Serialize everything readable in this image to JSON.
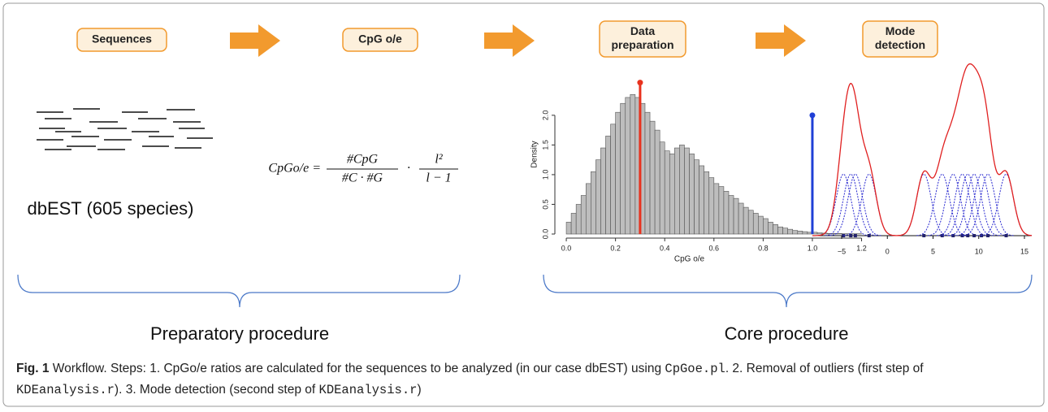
{
  "steps": [
    [
      "Sequences"
    ],
    [
      "CpG o/e"
    ],
    [
      "Data",
      "preparation"
    ],
    [
      "Mode",
      "detection"
    ]
  ],
  "dataset_label": "dbEST (605 species)",
  "formula": {
    "lhs": "CpGo/e =",
    "frac1_num": "#CpG",
    "frac1_den": "#C · #G",
    "dot": "·",
    "frac2_num": "l²",
    "frac2_den": "l − 1"
  },
  "procedures": [
    "Preparatory procedure",
    "Core procedure"
  ],
  "chart_data": [
    {
      "type": "histogram",
      "xlabel": "CpG o/e",
      "ylabel": "Density",
      "color": "#bdbdbd",
      "bins": [
        0,
        0.02,
        0.04,
        0.06,
        0.08,
        0.1,
        0.12,
        0.14,
        0.16,
        0.18,
        0.2,
        0.22,
        0.24,
        0.26,
        0.28,
        0.3,
        0.32,
        0.34,
        0.36,
        0.38,
        0.4,
        0.42,
        0.44,
        0.46,
        0.48,
        0.5,
        0.52,
        0.54,
        0.56,
        0.58,
        0.6,
        0.62,
        0.64,
        0.66,
        0.68,
        0.7,
        0.72,
        0.74,
        0.76,
        0.78,
        0.8,
        0.82,
        0.84,
        0.86,
        0.88,
        0.9,
        0.92,
        0.94,
        0.96,
        0.98,
        1,
        1.02,
        1.04,
        1.06,
        1.08,
        1.1,
        1.12,
        1.14,
        1.16,
        1.18,
        1.2
      ],
      "values": [
        0.2,
        0.35,
        0.5,
        0.65,
        0.85,
        1.05,
        1.25,
        1.45,
        1.65,
        1.85,
        2.05,
        2.2,
        2.3,
        2.35,
        2.3,
        2.2,
        2.05,
        1.9,
        1.75,
        1.55,
        1.4,
        1.35,
        1.45,
        1.5,
        1.45,
        1.35,
        1.25,
        1.15,
        1.05,
        0.95,
        0.85,
        0.8,
        0.72,
        0.65,
        0.6,
        0.52,
        0.45,
        0.4,
        0.35,
        0.3,
        0.26,
        0.2,
        0.16,
        0.12,
        0.1,
        0.08,
        0.06,
        0.05,
        0.04,
        0.03,
        0.03,
        0.02,
        0.015,
        0.01,
        0.01,
        0.01,
        0.005,
        0.005,
        0.005,
        0.005
      ],
      "markers": [
        {
          "x": 0.3,
          "y": 2.55,
          "color": "#e8321e"
        },
        {
          "x": 1.0,
          "y": 2.0,
          "color": "#1f3fd6"
        }
      ],
      "xlim": [
        -0.02,
        1.36
      ],
      "ylim": [
        0,
        2.6
      ],
      "xticks": [
        {
          "value": 0,
          "label": "0.0"
        },
        0.2,
        0.4,
        0.6,
        0.8,
        {
          "value": 1,
          "label": "1.0"
        },
        1.2
      ],
      "yticks": [
        {
          "value": 0,
          "label": "0.0"
        },
        0.5,
        {
          "value": 1,
          "label": "1.0"
        },
        1.5,
        {
          "value": 2,
          "label": "2.0"
        }
      ]
    },
    {
      "type": "kde",
      "components": [
        -4.8,
        -4,
        -3.5,
        -2,
        4,
        6,
        7.2,
        8.2,
        8.8,
        9.5,
        10.3,
        11,
        13
      ],
      "component_height": 1,
      "bandwidth": 0.8,
      "color": "#e02020",
      "component_color": "#2a2ad0",
      "xlim": [
        -8.2,
        15.8
      ],
      "ylim": [
        0,
        3.3
      ],
      "xticks": [
        {
          "value": -5,
          "label": "−5"
        },
        0,
        5,
        10,
        15
      ]
    }
  ],
  "caption": {
    "label": "Fig. 1",
    "parts": [
      " Workflow. Steps: 1. CpGo/e ratios are calculated for the sequences to be analyzed (in our case dbEST) using ",
      "CpGoe.pl",
      ". 2. Removal of outliers (first step of ",
      "KDEanalysis.r",
      "). 3. Mode detection (second step of ",
      "KDEanalysis.r",
      ")"
    ]
  }
}
